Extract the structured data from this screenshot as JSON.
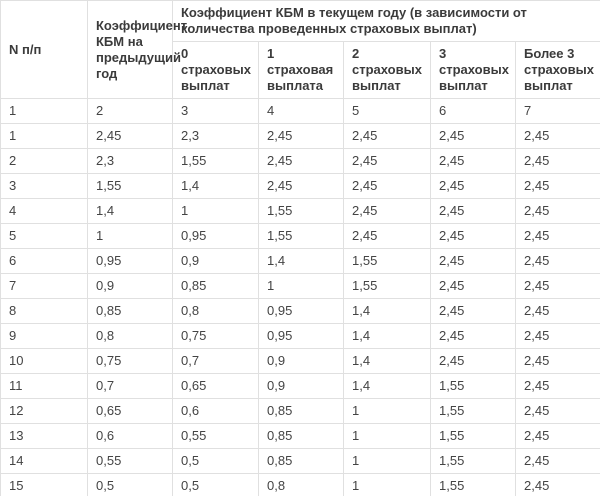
{
  "table": {
    "col1_header": "N п/п",
    "col2_header": "Коэффициент КБМ на предыдущий год",
    "span_header": "Коэффициент КБМ в текущем году (в зависимости от количества проведенных страховых выплат)",
    "sub_headers": [
      "0 страховых выплат",
      "1 страховая выплата",
      "2 страховых выплат",
      "3 страховых выплат",
      "Более 3 страховых выплат"
    ],
    "column_numbers": [
      "1",
      "2",
      "3",
      "4",
      "5",
      "6",
      "7"
    ],
    "rows": [
      [
        "1",
        "2,45",
        "2,3",
        "2,45",
        "2,45",
        "2,45",
        "2,45"
      ],
      [
        "2",
        "2,3",
        "1,55",
        "2,45",
        "2,45",
        "2,45",
        "2,45"
      ],
      [
        "3",
        "1,55",
        "1,4",
        "2,45",
        "2,45",
        "2,45",
        "2,45"
      ],
      [
        "4",
        "1,4",
        "1",
        "1,55",
        "2,45",
        "2,45",
        "2,45"
      ],
      [
        "5",
        "1",
        "0,95",
        "1,55",
        "2,45",
        "2,45",
        "2,45"
      ],
      [
        "6",
        "0,95",
        "0,9",
        "1,4",
        "1,55",
        "2,45",
        "2,45"
      ],
      [
        "7",
        "0,9",
        "0,85",
        "1",
        "1,55",
        "2,45",
        "2,45"
      ],
      [
        "8",
        "0,85",
        "0,8",
        "0,95",
        "1,4",
        "2,45",
        "2,45"
      ],
      [
        "9",
        "0,8",
        "0,75",
        "0,95",
        "1,4",
        "2,45",
        "2,45"
      ],
      [
        "10",
        "0,75",
        "0,7",
        "0,9",
        "1,4",
        "2,45",
        "2,45"
      ],
      [
        "11",
        "0,7",
        "0,65",
        "0,9",
        "1,4",
        "1,55",
        "2,45"
      ],
      [
        "12",
        "0,65",
        "0,6",
        "0,85",
        "1",
        "1,55",
        "2,45"
      ],
      [
        "13",
        "0,6",
        "0,55",
        "0,85",
        "1",
        "1,55",
        "2,45"
      ],
      [
        "14",
        "0,55",
        "0,5",
        "0,85",
        "1",
        "1,55",
        "2,45"
      ],
      [
        "15",
        "0,5",
        "0,5",
        "0,8",
        "1",
        "1,55",
        "2,45"
      ]
    ]
  },
  "colors": {
    "border": "#e0e0e0",
    "text": "#444444",
    "header_text": "#3b3b3b",
    "background": "#ffffff"
  }
}
